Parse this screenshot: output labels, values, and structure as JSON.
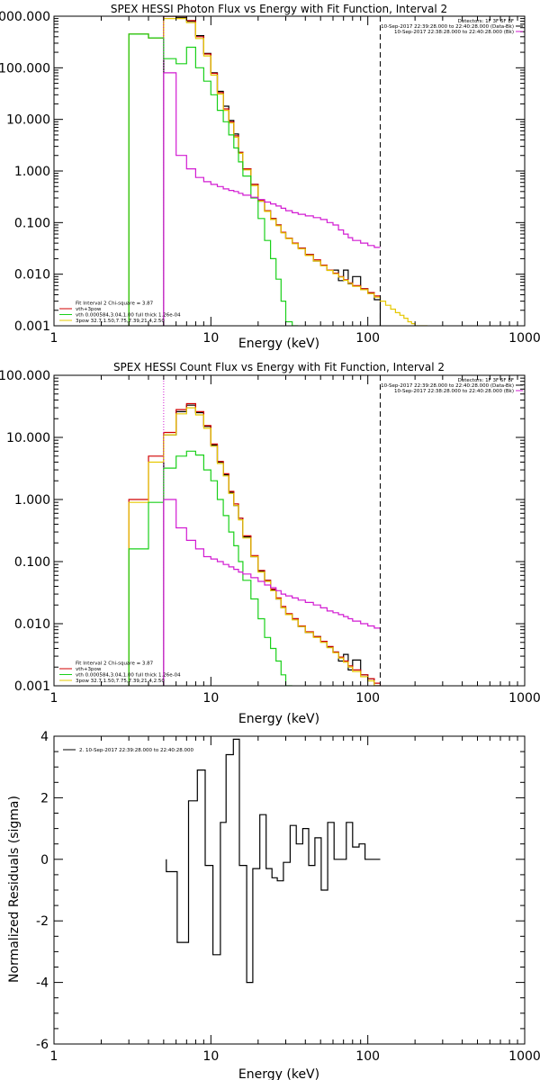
{
  "colors": {
    "black": "#000000",
    "red": "#d10000",
    "green": "#1ad01a",
    "yellow": "#e6c800",
    "magenta": "#d21bd2",
    "background": "#ffffff"
  },
  "chart_data": [
    {
      "type": "line",
      "title": "SPEX HESSI Photon Flux vs Energy with Fit Function, Interval 2",
      "xlabel": "Energy (keV)",
      "ylabel": "",
      "xscale": "log",
      "yscale": "log",
      "xlim": [
        1,
        1000
      ],
      "ylim": [
        0.001,
        1000
      ],
      "x_tick_labels": [
        "1",
        "10",
        "100",
        "1000"
      ],
      "y_tick_labels": [
        "0.001",
        "0.010",
        "0.100",
        "1.000",
        "10.000",
        "100.000",
        "1000.000"
      ],
      "legend_top_right": [
        "Detectors: 1F 3F 6F 8F",
        "10-Sep-2017 22:39:28.000 to 22:40:28.000 (Data-Bk)",
        "10-Sep-2017 22:38:28.000 to 22:40:28.000 (Bk)"
      ],
      "legend_top_right_colors": [
        "#000000",
        "#000000",
        "#d21bd2"
      ],
      "legend_bottom_left": [
        "Fit Interval 2   Chi-square = 3.87",
        "vth+3pow",
        "vth 0.000584,3.04,1.00   full thick 1.26e-04",
        "3pow 32.7,1.50,7.75,7.39,21.4,2.50"
      ],
      "legend_bottom_left_colors": [
        "#000000",
        "#d10000",
        "#1ad01a",
        "#e6c800"
      ],
      "vertical_lines": [
        {
          "x": 5.0,
          "style": "dotted",
          "color": "#d21bd2"
        },
        {
          "x": 120.0,
          "style": "dashed",
          "color": "#000000"
        }
      ],
      "series": [
        {
          "name": "Data-Bk",
          "color": "#000000",
          "energy_edges": [
            5.0,
            6.0,
            7.0,
            8.0,
            9.0,
            10.0,
            11.0,
            12.0,
            13.0,
            14.0,
            15.0,
            16.0,
            18.0,
            20.0,
            22.0,
            24.0,
            26.0,
            28.0,
            30.0,
            33.0,
            36.0,
            40.0,
            45.0,
            50.0,
            55.0,
            60.0,
            65.0,
            70.0,
            75.0,
            80.0,
            90.0,
            100.0,
            110.0,
            120.0
          ],
          "values": [
            1200,
            950,
            800,
            420,
            190,
            80,
            35,
            18,
            9.5,
            5.2,
            2.3,
            1.1,
            0.55,
            0.26,
            0.17,
            0.12,
            0.09,
            0.065,
            0.05,
            0.04,
            0.032,
            0.024,
            0.018,
            0.015,
            0.012,
            0.012,
            0.0075,
            0.012,
            0.0065,
            0.009,
            0.0052,
            0.0043,
            0.0032
          ]
        },
        {
          "name": "vth+3pow",
          "color": "#d10000",
          "energy_edges": [
            3.0,
            4.0,
            5.0,
            6.0,
            7.0,
            8.0,
            9.0,
            10.0,
            11.0,
            12.0,
            13.0,
            14.0,
            15.0,
            16.0,
            18.0,
            20.0,
            22.0,
            24.0,
            26.0,
            28.0,
            30.0,
            33.0,
            36.0,
            40.0,
            45.0,
            50.0,
            55.0,
            60.0,
            65.0,
            70.0,
            75.0,
            80.0,
            90.0,
            100.0,
            110.0,
            120.0
          ],
          "values": [
            450,
            380,
            1050,
            1000,
            820,
            400,
            185,
            78,
            33,
            16,
            9,
            4.8,
            2.3,
            1.1,
            0.55,
            0.27,
            0.17,
            0.12,
            0.09,
            0.065,
            0.05,
            0.04,
            0.032,
            0.024,
            0.019,
            0.015,
            0.012,
            0.0105,
            0.009,
            0.0078,
            0.0068,
            0.006,
            0.0052,
            0.0044,
            0.0038,
            0.0033
          ]
        },
        {
          "name": "3pow",
          "color": "#e6c800",
          "energy_edges": [
            3.0,
            4.0,
            5.0,
            6.0,
            7.0,
            8.0,
            9.0,
            10.0,
            11.0,
            12.0,
            13.0,
            14.0,
            15.0,
            16.0,
            18.0,
            20.0,
            22.0,
            24.0,
            26.0,
            28.0,
            30.0,
            33.0,
            36.0,
            40.0,
            45.0,
            50.0,
            55.0,
            60.0,
            65.0,
            70.0,
            75.0,
            80.0,
            90.0,
            100.0,
            110.0,
            120.0,
            130.0,
            140.0,
            150.0,
            160.0,
            170.0,
            180.0,
            190.0,
            200.0,
            220.0,
            240.0
          ],
          "values": [
            450,
            380,
            900,
            900,
            750,
            370,
            170,
            72,
            31,
            15,
            8.5,
            4.5,
            2.2,
            1.05,
            0.52,
            0.26,
            0.165,
            0.115,
            0.087,
            0.063,
            0.049,
            0.039,
            0.031,
            0.023,
            0.018,
            0.0145,
            0.0118,
            0.0102,
            0.0088,
            0.0076,
            0.0066,
            0.0058,
            0.005,
            0.0042,
            0.0036,
            0.003,
            0.0025,
            0.0021,
            0.0018,
            0.0016,
            0.0014,
            0.0012,
            0.0011,
            0.001,
            0.00085
          ]
        },
        {
          "name": "vth",
          "color": "#1ad01a",
          "energy_edges": [
            3.0,
            4.0,
            5.0,
            6.0,
            7.0,
            8.0,
            9.0,
            10.0,
            11.0,
            12.0,
            13.0,
            14.0,
            15.0,
            16.0,
            18.0,
            20.0,
            22.0,
            24.0,
            26.0,
            28.0,
            30.0,
            33.0,
            36.0
          ],
          "values": [
            450,
            380,
            150,
            120,
            250,
            100,
            55,
            30,
            15,
            9,
            5,
            2.8,
            1.5,
            0.8,
            0.3,
            0.12,
            0.045,
            0.02,
            0.008,
            0.003,
            0.0012,
            0.0005
          ]
        },
        {
          "name": "Bk",
          "color": "#d21bd2",
          "energy_edges": [
            5.0,
            6.0,
            7.0,
            8.0,
            9.0,
            10.0,
            11.0,
            12.0,
            13.0,
            14.0,
            15.0,
            16.0,
            18.0,
            20.0,
            22.0,
            24.0,
            26.0,
            28.0,
            30.0,
            33.0,
            36.0,
            40.0,
            45.0,
            50.0,
            55.0,
            60.0,
            65.0,
            70.0,
            75.0,
            80.0,
            90.0,
            100.0,
            110.0,
            120.0
          ],
          "values": [
            80,
            2,
            1.1,
            0.75,
            0.62,
            0.55,
            0.5,
            0.45,
            0.42,
            0.4,
            0.37,
            0.34,
            0.31,
            0.28,
            0.25,
            0.23,
            0.21,
            0.19,
            0.17,
            0.155,
            0.145,
            0.135,
            0.125,
            0.115,
            0.1,
            0.09,
            0.072,
            0.06,
            0.051,
            0.045,
            0.04,
            0.036,
            0.033,
            0.033
          ]
        }
      ]
    },
    {
      "type": "line",
      "title": "SPEX HESSI Count Flux vs Energy with Fit Function, Interval 2",
      "xlabel": "Energy (keV)",
      "ylabel": "",
      "xscale": "log",
      "yscale": "log",
      "xlim": [
        1,
        1000
      ],
      "ylim": [
        0.001,
        100
      ],
      "x_tick_labels": [
        "1",
        "10",
        "100",
        "1000"
      ],
      "y_tick_labels": [
        "0.001",
        "0.010",
        "0.100",
        "1.000",
        "10.000",
        "100.000"
      ],
      "legend_top_right": [
        "Detectors: 1F 3F 6F 8F",
        "10-Sep-2017 22:39:28.000 to 22:40:28.000 (Data-Bk)",
        "10-Sep-2017 22:38:28.000 to 22:40:28.000 (Bk)"
      ],
      "legend_top_right_colors": [
        "#000000",
        "#000000",
        "#d21bd2"
      ],
      "legend_bottom_left": [
        "Fit Interval 2   Chi-square = 3.87",
        "vth+3pow",
        "vth 0.000584,3.04,1.00   full thick 1.26e-04",
        "3pow 32.7,1.50,7.75,7.39,21.4,2.50"
      ],
      "legend_bottom_left_colors": [
        "#000000",
        "#d10000",
        "#1ad01a",
        "#e6c800"
      ],
      "vertical_lines": [
        {
          "x": 5.0,
          "style": "dotted",
          "color": "#d21bd2"
        },
        {
          "x": 120.0,
          "style": "dashed",
          "color": "#000000"
        }
      ],
      "series": [
        {
          "name": "Data-Bk",
          "color": "#000000",
          "energy_edges": [
            5.0,
            6.0,
            7.0,
            8.0,
            9.0,
            10.0,
            11.0,
            12.0,
            13.0,
            14.0,
            15.0,
            16.0,
            18.0,
            20.0,
            22.0,
            24.0,
            26.0,
            28.0,
            30.0,
            33.0,
            36.0,
            40.0,
            45.0,
            50.0,
            55.0,
            60.0,
            65.0,
            70.0,
            75.0,
            80.0,
            90.0,
            100.0,
            110.0,
            120.0
          ],
          "values": [
            11,
            26,
            33,
            25,
            15,
            7.5,
            4,
            2.5,
            1.3,
            0.8,
            0.5,
            0.25,
            0.12,
            0.07,
            0.05,
            0.035,
            0.025,
            0.018,
            0.014,
            0.012,
            0.009,
            0.0072,
            0.0062,
            0.0052,
            0.0042,
            0.0035,
            0.0025,
            0.0032,
            0.0018,
            0.0026,
            0.0015,
            0.0013,
            0.001
          ]
        },
        {
          "name": "vth+3pow",
          "color": "#d10000",
          "energy_edges": [
            3.0,
            4.0,
            5.0,
            6.0,
            7.0,
            8.0,
            9.0,
            10.0,
            11.0,
            12.0,
            13.0,
            14.0,
            15.0,
            16.0,
            18.0,
            20.0,
            22.0,
            24.0,
            26.0,
            28.0,
            30.0,
            33.0,
            36.0,
            40.0,
            45.0,
            50.0,
            55.0,
            60.0,
            65.0,
            70.0,
            75.0,
            80.0,
            90.0,
            100.0,
            110.0,
            120.0
          ],
          "values": [
            1.0,
            5.0,
            12,
            28,
            35,
            26,
            15.5,
            7.8,
            4.1,
            2.6,
            1.35,
            0.85,
            0.5,
            0.26,
            0.125,
            0.072,
            0.05,
            0.036,
            0.026,
            0.019,
            0.0145,
            0.012,
            0.0092,
            0.0074,
            0.0062,
            0.0052,
            0.0043,
            0.0035,
            0.0029,
            0.0025,
            0.0021,
            0.0018,
            0.0015,
            0.0013,
            0.0011,
            0.00095
          ]
        },
        {
          "name": "3pow",
          "color": "#e6c800",
          "energy_edges": [
            3.0,
            4.0,
            5.0,
            6.0,
            7.0,
            8.0,
            9.0,
            10.0,
            11.0,
            12.0,
            13.0,
            14.0,
            15.0,
            16.0,
            18.0,
            20.0,
            22.0,
            24.0,
            26.0,
            28.0,
            30.0,
            33.0,
            36.0,
            40.0,
            45.0,
            50.0,
            55.0,
            60.0,
            65.0,
            70.0,
            75.0,
            80.0,
            90.0,
            100.0,
            110.0,
            120.0
          ],
          "values": [
            0.9,
            4.0,
            11,
            24,
            30,
            23,
            14,
            7.2,
            3.8,
            2.4,
            1.25,
            0.8,
            0.47,
            0.24,
            0.12,
            0.068,
            0.048,
            0.034,
            0.025,
            0.018,
            0.014,
            0.0115,
            0.009,
            0.0072,
            0.006,
            0.005,
            0.0041,
            0.0034,
            0.0028,
            0.0024,
            0.002,
            0.0017,
            0.0014,
            0.0012,
            0.001,
            0.0009
          ]
        },
        {
          "name": "vth",
          "color": "#1ad01a",
          "energy_edges": [
            3.0,
            4.0,
            5.0,
            6.0,
            7.0,
            8.0,
            9.0,
            10.0,
            11.0,
            12.0,
            13.0,
            14.0,
            15.0,
            16.0,
            18.0,
            20.0,
            22.0,
            24.0,
            26.0,
            28.0,
            30.0,
            33.0
          ],
          "values": [
            0.16,
            0.9,
            3.2,
            5,
            6,
            5.2,
            3,
            2,
            1,
            0.55,
            0.3,
            0.18,
            0.1,
            0.05,
            0.025,
            0.012,
            0.006,
            0.004,
            0.0025,
            0.0015,
            0.001
          ]
        },
        {
          "name": "Bk",
          "color": "#d21bd2",
          "energy_edges": [
            5.0,
            6.0,
            7.0,
            8.0,
            9.0,
            10.0,
            11.0,
            12.0,
            13.0,
            14.0,
            15.0,
            16.0,
            18.0,
            20.0,
            22.0,
            24.0,
            26.0,
            28.0,
            30.0,
            33.0,
            36.0,
            40.0,
            45.0,
            50.0,
            55.0,
            60.0,
            65.0,
            70.0,
            75.0,
            80.0,
            90.0,
            100.0,
            110.0,
            120.0
          ],
          "values": [
            1.0,
            0.35,
            0.22,
            0.16,
            0.12,
            0.11,
            0.1,
            0.09,
            0.082,
            0.075,
            0.068,
            0.063,
            0.055,
            0.048,
            0.042,
            0.038,
            0.034,
            0.03,
            0.028,
            0.026,
            0.024,
            0.022,
            0.02,
            0.018,
            0.016,
            0.015,
            0.014,
            0.013,
            0.012,
            0.011,
            0.01,
            0.0092,
            0.0085,
            0.0078
          ]
        }
      ]
    },
    {
      "type": "line",
      "title": "",
      "xlabel": "Energy (keV)",
      "ylabel": "Normalized Residuals (sigma)",
      "xscale": "log",
      "yscale": "linear",
      "xlim": [
        1,
        1000
      ],
      "ylim": [
        -6,
        4
      ],
      "x_tick_labels": [
        "1",
        "10",
        "100",
        "1000"
      ],
      "y_tick_labels": [
        "-6",
        "-4",
        "-2",
        "0",
        "2",
        "4"
      ],
      "legend": "2. 10-Sep-2017 22:39:28.000 to 22:40:28.000",
      "series": [
        {
          "name": "2. 10-Sep-2017 22:39:28.000 to 22:40:28.000",
          "color": "#000000",
          "energy_edges": [
            5.2,
            6.1,
            7.2,
            8.2,
            9.2,
            10.3,
            11.5,
            12.5,
            13.9,
            15.2,
            16.9,
            18.5,
            20.5,
            22.5,
            24.5,
            26.5,
            29.0,
            32.0,
            35.0,
            38.5,
            42.0,
            46.0,
            50.5,
            55.5,
            61.0,
            67.0,
            73.0,
            80.0,
            88.0,
            96.0,
            105.0,
            120.0
          ],
          "values": [
            -0.4,
            -2.7,
            1.9,
            2.9,
            -0.2,
            -3.1,
            1.2,
            3.4,
            3.9,
            -0.2,
            -4.0,
            -0.3,
            1.45,
            -0.3,
            -0.6,
            -0.7,
            -0.1,
            1.1,
            0.5,
            1.0,
            -0.2,
            0.7,
            -1.0,
            1.2,
            0.0,
            0.0,
            1.2,
            0.4,
            0.5,
            0.0,
            0.0
          ]
        }
      ]
    }
  ]
}
